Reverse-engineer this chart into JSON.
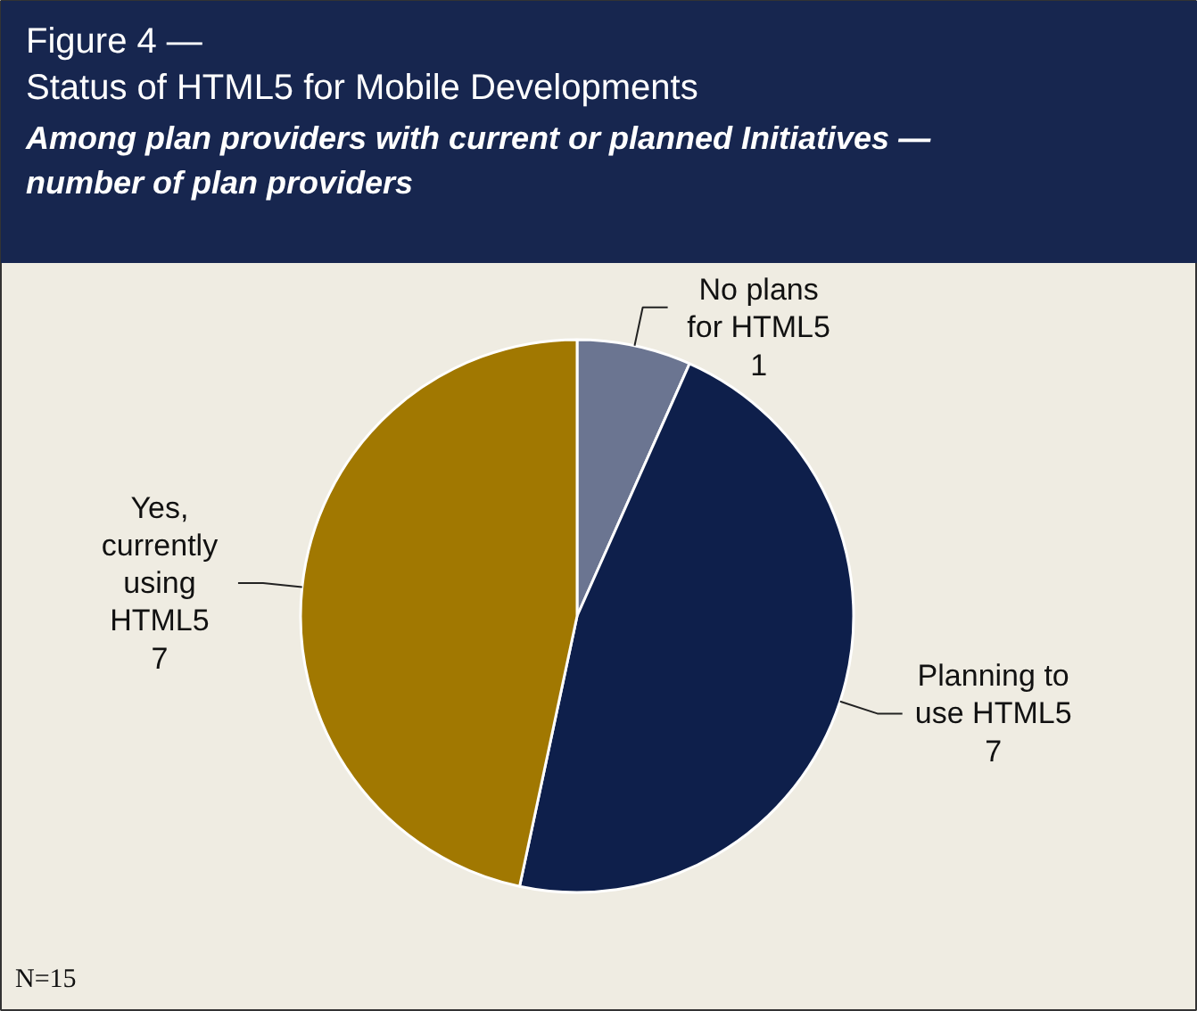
{
  "chart_data": {
    "type": "pie",
    "title": "Figure 4 —\nStatus of HTML5 for Mobile Developments",
    "subtitle": "Among plan providers with current or planned Initiatives —\nnumber of plan providers",
    "categories": [
      "No plans\nfor HTML5",
      "Planning to\nuse HTML5",
      "Yes,\ncurrently\nusing\nHTML5"
    ],
    "values": [
      1,
      7,
      7
    ],
    "colors": [
      "#6b7591",
      "#0e1f4b",
      "#a17801"
    ],
    "data_labels": true,
    "annotations": [
      "N=15"
    ]
  }
}
